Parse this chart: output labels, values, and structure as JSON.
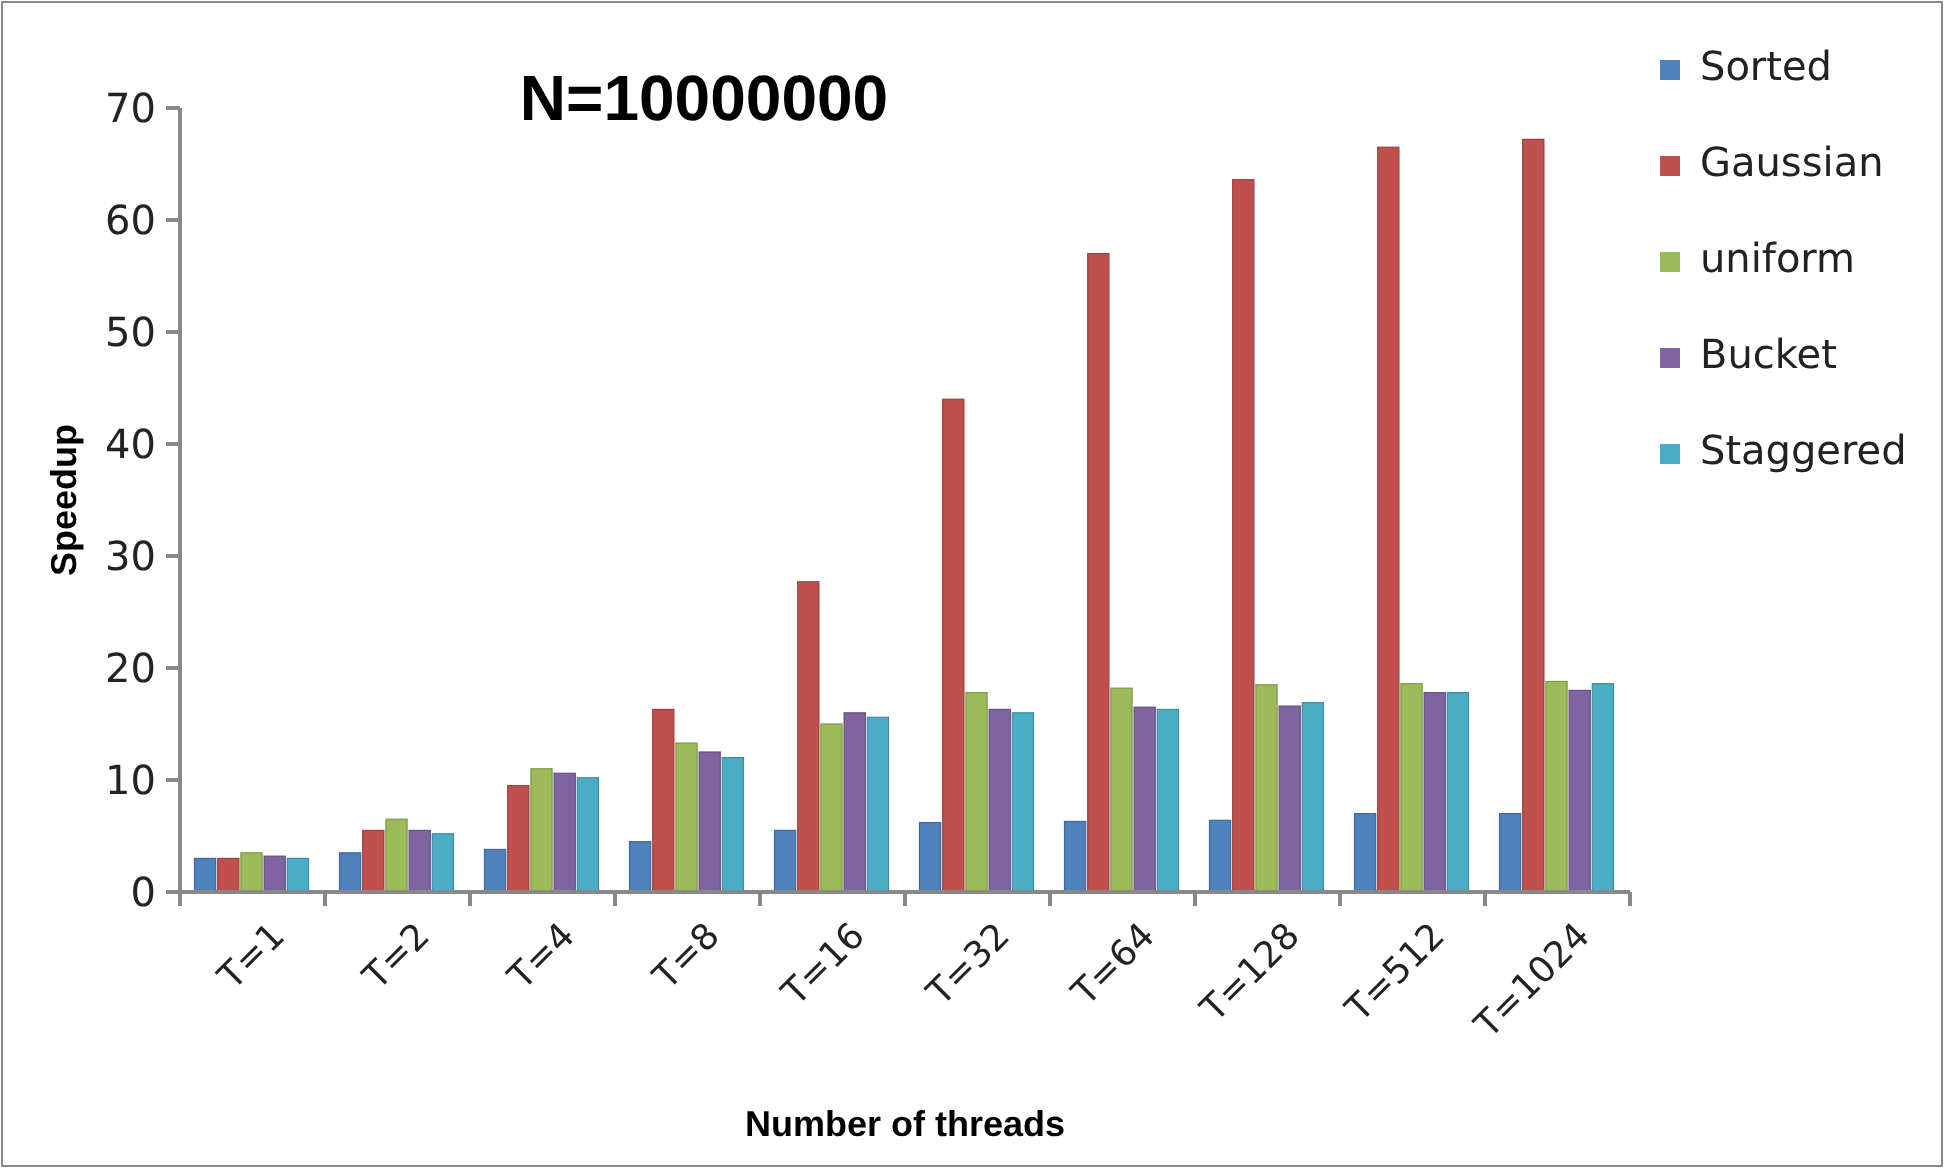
{
  "chart_data": {
    "type": "bar",
    "title": "N=10000000",
    "xlabel": "Number of threads",
    "ylabel": "Speedup",
    "categories": [
      "T=1",
      "T=2",
      "T=4",
      "T=8",
      "T=16",
      "T=32",
      "T=64",
      "T=128",
      "T=512",
      "T=1024"
    ],
    "series": [
      {
        "name": "Sorted",
        "color": "#4f81bd",
        "values": [
          3,
          3.5,
          3.8,
          4.5,
          5.5,
          6.2,
          6.3,
          6.4,
          7,
          7
        ]
      },
      {
        "name": "Gaussian",
        "color": "#c0504d",
        "values": [
          3,
          5.5,
          9.5,
          16.3,
          27.7,
          44,
          57,
          63.6,
          66.5,
          67.2
        ]
      },
      {
        "name": "uniform",
        "color": "#9bbb59",
        "values": [
          3.5,
          6.5,
          11,
          13.3,
          15,
          17.8,
          18.2,
          18.5,
          18.6,
          18.8
        ]
      },
      {
        "name": "Bucket",
        "color": "#8064a2",
        "values": [
          3.2,
          5.5,
          10.6,
          12.5,
          16,
          16.3,
          16.5,
          16.6,
          17.8,
          18
        ]
      },
      {
        "name": "Staggered",
        "color": "#4bacc6",
        "values": [
          3,
          5.2,
          10.2,
          12,
          15.6,
          16,
          16.3,
          16.9,
          17.8,
          18.6
        ]
      }
    ],
    "ylim": [
      0,
      70
    ],
    "yticks": [
      0,
      10,
      20,
      30,
      40,
      50,
      60,
      70
    ],
    "legend": "right"
  }
}
